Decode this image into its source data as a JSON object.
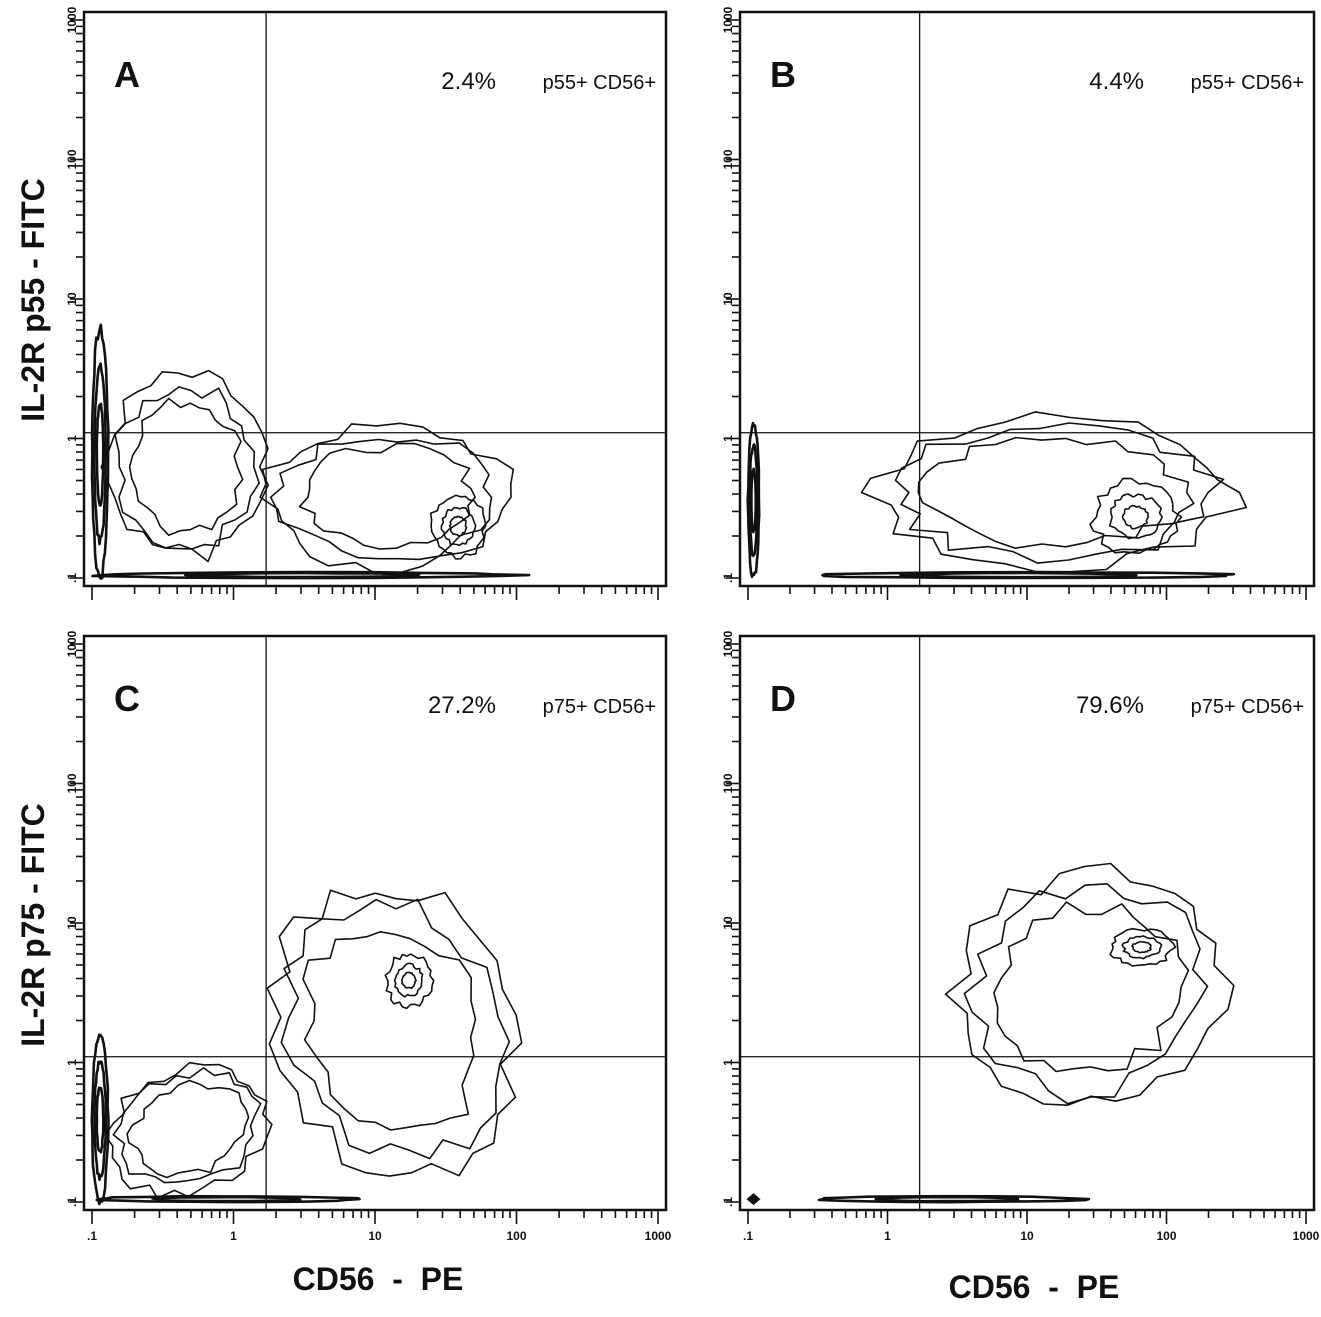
{
  "figure": {
    "y_axis_title_top": "IL-2R  p55  -  FITC",
    "y_axis_title_bottom": "IL-2R p75 - FITC",
    "x_axis_title_left": "CD56  -  PE",
    "x_axis_title_right": "CD56  -  PE"
  },
  "chart_data": [
    {
      "type": "contour",
      "panel": "A",
      "xlabel": "CD56 - PE",
      "ylabel": "IL-2R p55 - FITC",
      "xscale": "log",
      "yscale": "log",
      "xlim": [
        0.1,
        1000
      ],
      "ylim": [
        0.1,
        1000
      ],
      "xticks": [
        ".1",
        "1",
        "10",
        "100",
        "1000"
      ],
      "yticks": [
        ".1",
        "1",
        "10",
        "100",
        "1000"
      ],
      "gate": {
        "x": 1.7,
        "y": 1.1
      },
      "annotation": {
        "percent": "2.4%",
        "label": "p55+ CD56+"
      },
      "populations": [
        {
          "x": [
            0.1,
            0.13
          ],
          "y": [
            0.1,
            6.0
          ],
          "shape": "spike"
        },
        {
          "x": [
            0.1,
            100
          ],
          "y": [
            0.1,
            0.11
          ],
          "shape": "baseline"
        },
        {
          "x": [
            0.13,
            1.6
          ],
          "y": [
            0.14,
            2.8
          ],
          "shape": "blob"
        },
        {
          "x": [
            1.7,
            90
          ],
          "y": [
            0.12,
            1.2
          ],
          "shape": "blob"
        },
        {
          "x": [
            25,
            60
          ],
          "y": [
            0.14,
            0.4
          ],
          "shape": "core"
        }
      ]
    },
    {
      "type": "contour",
      "panel": "B",
      "xlabel": "CD56 - PE",
      "ylabel": "IL-2R p55 - FITC",
      "xscale": "log",
      "yscale": "log",
      "xlim": [
        0.1,
        1000
      ],
      "ylim": [
        0.1,
        1000
      ],
      "xticks": [
        ".1",
        "1",
        "10",
        "100",
        "1000"
      ],
      "yticks": [
        ".1",
        "1",
        "10",
        "100",
        "1000"
      ],
      "gate": {
        "x": 1.7,
        "y": 1.1
      },
      "annotation": {
        "percent": "4.4%",
        "label": "p55+ CD56+"
      },
      "populations": [
        {
          "x": [
            0.1,
            0.12
          ],
          "y": [
            0.1,
            1.3
          ],
          "shape": "spike"
        },
        {
          "x": [
            0.3,
            300
          ],
          "y": [
            0.1,
            0.11
          ],
          "shape": "baseline"
        },
        {
          "x": [
            0.8,
            300
          ],
          "y": [
            0.12,
            1.4
          ],
          "shape": "blob"
        },
        {
          "x": [
            30,
            120
          ],
          "y": [
            0.15,
            0.5
          ],
          "shape": "core"
        }
      ]
    },
    {
      "type": "contour",
      "panel": "C",
      "xlabel": "CD56 - PE",
      "ylabel": "IL-2R p75 - FITC",
      "xscale": "log",
      "yscale": "log",
      "xlim": [
        0.1,
        1000
      ],
      "ylim": [
        0.1,
        1000
      ],
      "xticks": [
        ".1",
        "1",
        "10",
        "100",
        "1000"
      ],
      "yticks": [
        ".1",
        "1",
        "10",
        "100",
        "1000"
      ],
      "gate": {
        "x": 1.7,
        "y": 1.1
      },
      "annotation": {
        "percent": "27.2%",
        "label": "p75+ CD56+"
      },
      "populations": [
        {
          "x": [
            0.1,
            0.13
          ],
          "y": [
            0.1,
            1.5
          ],
          "shape": "spike"
        },
        {
          "x": [
            0.1,
            8
          ],
          "y": [
            0.1,
            0.11
          ],
          "shape": "baseline"
        },
        {
          "x": [
            0.13,
            1.8
          ],
          "y": [
            0.12,
            0.9
          ],
          "shape": "blob"
        },
        {
          "x": [
            2,
            90
          ],
          "y": [
            0.15,
            20
          ],
          "shape": "blob"
        },
        {
          "x": [
            12,
            25
          ],
          "y": [
            2.5,
            6.0
          ],
          "shape": "core"
        }
      ]
    },
    {
      "type": "contour",
      "panel": "D",
      "xlabel": "CD56 - PE",
      "ylabel": "IL-2R p75 - FITC",
      "xscale": "log",
      "yscale": "log",
      "xlim": [
        0.1,
        1000
      ],
      "ylim": [
        0.1,
        1000
      ],
      "xticks": [
        ".1",
        "1",
        "10",
        "100",
        "1000"
      ],
      "yticks": [
        ".1",
        "1",
        "10",
        "100",
        "1000"
      ],
      "gate": {
        "x": 1.7,
        "y": 1.1
      },
      "annotation": {
        "percent": "79.6%",
        "label": "p75+ CD56+"
      },
      "populations": [
        {
          "x": [
            0.1,
            0.12
          ],
          "y": [
            0.1,
            0.11
          ],
          "shape": "marker"
        },
        {
          "x": [
            0.3,
            25
          ],
          "y": [
            0.1,
            0.11
          ],
          "shape": "baseline"
        },
        {
          "x": [
            3,
            250
          ],
          "y": [
            0.5,
            22
          ],
          "shape": "blob"
        },
        {
          "x": [
            40,
            110
          ],
          "y": [
            5,
            9
          ],
          "shape": "core"
        }
      ]
    }
  ]
}
